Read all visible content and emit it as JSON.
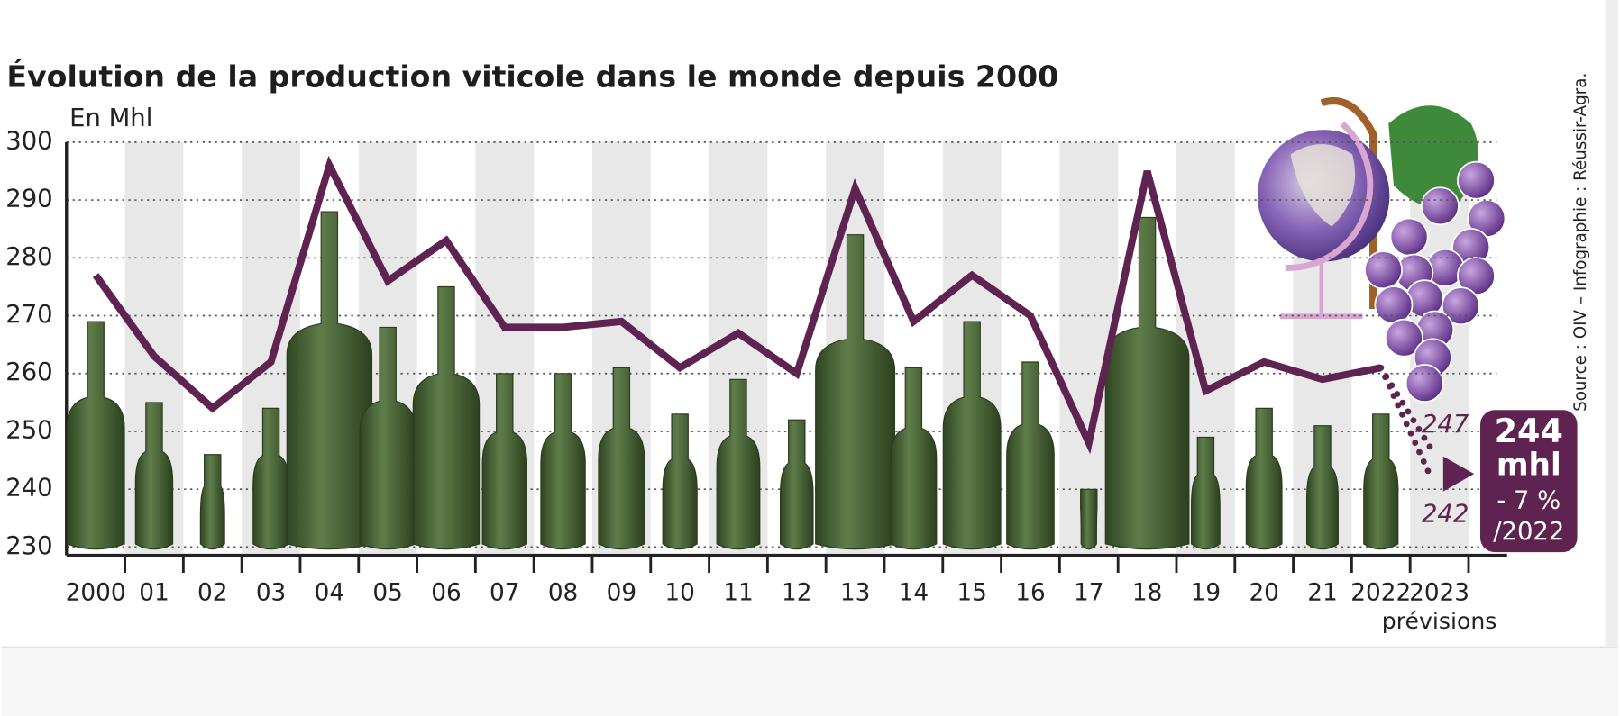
{
  "chart_data": {
    "type": "line",
    "title": "Évolution de la production viticole dans le monde depuis 2000",
    "y_label": "En Mhl",
    "source": "Source : OIV – Infographie : Réussir-Agra.",
    "categories": [
      "2000",
      "01",
      "02",
      "03",
      "04",
      "05",
      "06",
      "07",
      "08",
      "09",
      "10",
      "11",
      "12",
      "13",
      "14",
      "15",
      "16",
      "17",
      "18",
      "19",
      "20",
      "21",
      "2022",
      "2023"
    ],
    "category_note": "prévisions",
    "values": [
      277,
      263,
      254,
      262,
      296,
      276,
      283,
      268,
      268,
      269,
      261,
      267,
      260,
      292,
      269,
      277,
      270,
      248,
      295,
      257,
      262,
      259,
      261,
      null
    ],
    "color": "#5e2350",
    "bottle_color": "#3f5a2e",
    "ylim": [
      230,
      300
    ],
    "yticks": [
      230,
      240,
      250,
      260,
      270,
      280,
      290,
      300
    ],
    "grid": true,
    "forecast": {
      "high": 247,
      "low": 242,
      "value": 244,
      "unit": "mhl",
      "change": {
        "value": -7,
        "label": "- 7 %"
      },
      "change_base": "/2022"
    }
  }
}
